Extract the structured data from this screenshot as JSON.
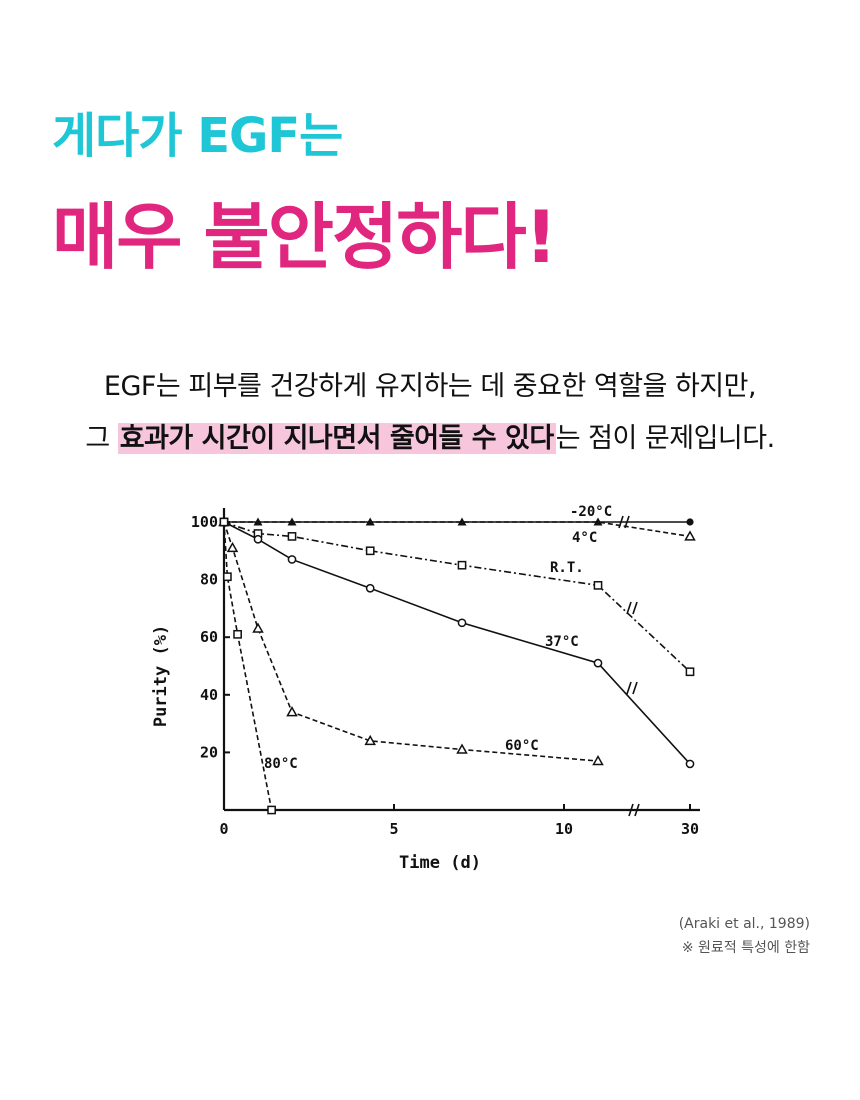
{
  "heading": {
    "line1": "게다가 EGF는",
    "line2": "매우 불안정하다!"
  },
  "body": {
    "line1": "EGF는 피부를 건강하게 유지하는 데 중요한 역할을 하지만,",
    "line2_pre": "그 ",
    "line2_highlight": "효과가 시간이 지나면서 줄어들 수 있다",
    "line2_post": "는 점이 문제입니다."
  },
  "colors": {
    "cyan": "#1ec6d6",
    "magenta": "#e0267e",
    "highlight": "#f7c6dd"
  },
  "chart_data": {
    "type": "line",
    "xlabel": "Time  (d)",
    "ylabel": "Purity (%)",
    "x_ticks": [
      "0",
      "5",
      "10",
      "30"
    ],
    "y_ticks": [
      "100",
      "80",
      "60",
      "40",
      "20"
    ],
    "ylim": [
      0,
      100
    ],
    "x_axis_break": "between 11 and 30 days",
    "series": [
      {
        "name": "-20°C",
        "marker": "filled-circle",
        "line": "solid",
        "x": [
          0,
          30
        ],
        "y": [
          100,
          100
        ]
      },
      {
        "name": "4°C",
        "marker": "filled-triangle/open-triangle",
        "line": "dashed",
        "x": [
          0,
          1,
          2,
          4.3,
          7,
          11,
          30
        ],
        "y": [
          100,
          100,
          100,
          100,
          100,
          100,
          95
        ]
      },
      {
        "name": "R.T.",
        "marker": "open-square",
        "line": "dash-dot",
        "x": [
          0,
          1,
          2,
          4.3,
          7,
          11,
          30
        ],
        "y": [
          100,
          96,
          95,
          90,
          85,
          78,
          48
        ]
      },
      {
        "name": "37°C",
        "marker": "open-circle",
        "line": "solid",
        "x": [
          0,
          1,
          2,
          4.3,
          7,
          11,
          30
        ],
        "y": [
          100,
          94,
          87,
          77,
          65,
          51,
          16
        ]
      },
      {
        "name": "60°C",
        "marker": "open-triangle",
        "line": "dashed",
        "x": [
          0,
          0.25,
          1,
          2,
          4.3,
          7,
          11
        ],
        "y": [
          100,
          91,
          63,
          34,
          24,
          21,
          17
        ]
      },
      {
        "name": "80°C",
        "marker": "open-square",
        "line": "dashed",
        "x": [
          0,
          0.1,
          0.4,
          1.4
        ],
        "y": [
          100,
          81,
          61,
          0
        ]
      }
    ]
  },
  "citation": {
    "source": "(Araki et al., 1989)",
    "note": "※ 원료적 특성에 한함"
  }
}
